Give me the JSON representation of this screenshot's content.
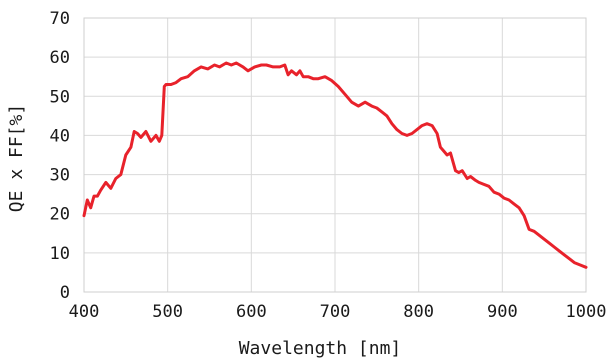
{
  "chart_data": {
    "type": "line",
    "xlabel": "Wavelength [nm]",
    "ylabel": "QE x FF[%]",
    "xlim": [
      400,
      1000
    ],
    "ylim": [
      0,
      70
    ],
    "x_ticks": [
      400,
      500,
      600,
      700,
      800,
      900,
      1000
    ],
    "y_ticks": [
      0,
      10,
      20,
      30,
      40,
      50,
      60,
      70
    ],
    "grid": true,
    "line_color": "#e8222b",
    "series": [
      {
        "x": [
          400,
          404,
          408,
          412,
          416,
          420,
          426,
          432,
          438,
          444,
          450,
          456,
          460,
          464,
          468,
          474,
          480,
          486,
          490,
          493,
          496,
          498,
          504,
          510,
          516,
          524,
          532,
          540,
          548,
          556,
          562,
          570,
          576,
          582,
          590,
          596,
          604,
          612,
          618,
          626,
          634,
          640,
          644,
          648,
          654,
          658,
          662,
          668,
          674,
          680,
          688,
          696,
          704,
          712,
          720,
          728,
          736,
          744,
          750,
          756,
          762,
          768,
          774,
          780,
          786,
          792,
          798,
          804,
          810,
          816,
          822,
          826,
          830,
          834,
          838,
          844,
          848,
          852,
          858,
          862,
          868,
          872,
          878,
          884,
          890,
          896,
          902,
          908,
          914,
          920,
          926,
          932,
          938,
          944,
          950,
          956,
          962,
          968,
          974,
          980,
          986,
          992,
          1000
        ],
        "values": [
          19.5,
          23.5,
          21.5,
          24.5,
          24.5,
          26,
          28,
          26.5,
          29,
          30,
          35,
          37,
          41,
          40.5,
          39.5,
          41,
          38.5,
          40,
          38.5,
          40,
          52.5,
          53,
          53,
          53.5,
          54.5,
          55,
          56.5,
          57.5,
          57,
          58,
          57.5,
          58.5,
          58,
          58.5,
          57.5,
          56.5,
          57.5,
          58,
          58,
          57.5,
          57.5,
          58,
          55.5,
          56.5,
          55.5,
          56.5,
          55,
          55,
          54.5,
          54.5,
          55,
          54,
          52.5,
          50.5,
          48.5,
          47.5,
          48.5,
          47.5,
          47,
          46,
          45,
          43,
          41.5,
          40.5,
          40,
          40.5,
          41.5,
          42.5,
          43,
          42.5,
          40.5,
          37,
          36,
          35,
          35.5,
          31,
          30.5,
          31,
          29,
          29.5,
          28.5,
          28,
          27.5,
          27,
          25.5,
          25,
          24,
          23.5,
          22.5,
          21.5,
          19.5,
          16,
          15.5,
          14.5,
          13.5,
          12.5,
          11.5,
          10.5,
          9.5,
          8.5,
          7.5,
          7,
          6.3
        ]
      }
    ]
  }
}
